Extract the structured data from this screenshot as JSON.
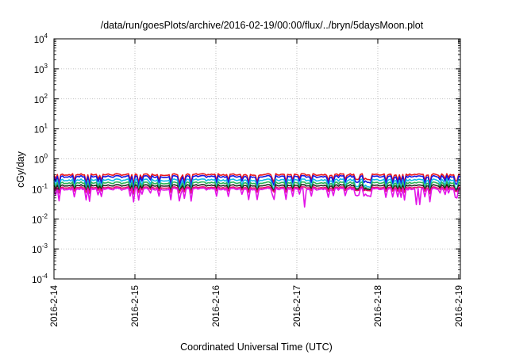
{
  "chart_data": {
    "type": "line",
    "title": "/data/run/goesPlots/archive/2016-02-19/00:00/flux/../bryn/5daysMoon.plot",
    "xlabel": "Coordinated Universal Time (UTC)",
    "ylabel": "cGy/day",
    "yscale": "log",
    "ylim": [
      0.0001,
      10000
    ],
    "xlim": [
      0,
      5.02
    ],
    "grid": true,
    "legend": "none",
    "x_ticks": [
      "2016-2-14",
      "2016-2-15",
      "2016-2-16",
      "2016-2-17",
      "2016-2-18",
      "2016-2-19"
    ],
    "y_ticks": [
      {
        "base": "10",
        "exp": "4"
      },
      {
        "base": "10",
        "exp": "3"
      },
      {
        "base": "10",
        "exp": "2"
      },
      {
        "base": "10",
        "exp": "1"
      },
      {
        "base": "10",
        "exp": "0"
      },
      {
        "base": "10",
        "exp": "-1"
      },
      {
        "base": "10",
        "exp": "-2"
      },
      {
        "base": "10",
        "exp": "-3"
      },
      {
        "base": "10",
        "exp": "-4"
      }
    ],
    "series": [
      {
        "color": "#e8141a",
        "base": 0.3,
        "dip_depth": 0.25,
        "spikes": []
      },
      {
        "color": "#1414e0",
        "base": 0.26,
        "dip_depth": 0.3,
        "spikes": []
      },
      {
        "color": "#13b8e8",
        "base": 0.2,
        "dip_depth": 0.35,
        "spikes": []
      },
      {
        "color": "#2bb556",
        "base": 0.16,
        "dip_depth": 0.3,
        "spikes": []
      },
      {
        "color": "#222222",
        "base": 0.13,
        "dip_depth": 0.2,
        "spikes": []
      },
      {
        "color": "#e8146e",
        "base": 0.11,
        "dip_depth": 0.15,
        "spikes": []
      },
      {
        "color": "#e214e8",
        "base": 0.1,
        "dip_depth": 0.35,
        "spikes": [
          {
            "x": 3.1,
            "value": 0.025
          },
          {
            "x": 4.47,
            "value": 0.03
          },
          {
            "x": 4.52,
            "value": 0.03
          }
        ]
      }
    ]
  }
}
